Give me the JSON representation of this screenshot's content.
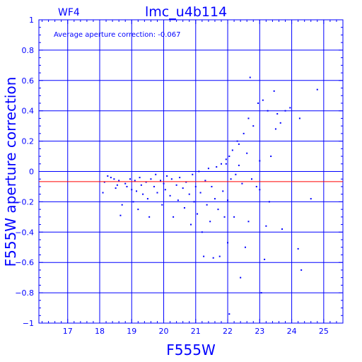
{
  "chart_data": {
    "type": "scatter",
    "panel_label": "WF4",
    "title": "lmc_u4b114",
    "xlabel": "F555W",
    "ylabel": "F555W aperture correction",
    "annotation": "Average aperture correction: -0.067",
    "average_correction": -0.067,
    "xlim": [
      16.1,
      25.6
    ],
    "ylim": [
      -1,
      1
    ],
    "x_ticks": [
      17,
      18,
      19,
      20,
      21,
      22,
      23,
      24,
      25
    ],
    "y_ticks": [
      1,
      0.8,
      0.6,
      0.4,
      0.2,
      0,
      -0.2,
      -0.4,
      -0.6,
      -0.8,
      -1
    ],
    "y_tick_labels": [
      "1",
      "0.8",
      "0.6",
      "0.4",
      "0.2",
      "0",
      "−0.2",
      "−0.4",
      "−0.6",
      "−0.8",
      "−1"
    ],
    "grid": true,
    "colors": {
      "axes": "#0000ff",
      "grid": "#0000ff",
      "points": "#0000ff",
      "average_line": "#ff0000"
    },
    "series": [
      {
        "points": [
          [
            18.1,
            -0.14
          ],
          [
            18.15,
            -0.07
          ],
          [
            18.25,
            -0.03
          ],
          [
            18.35,
            -0.04
          ],
          [
            18.45,
            -0.05
          ],
          [
            18.5,
            -0.11
          ],
          [
            18.55,
            -0.09
          ],
          [
            18.6,
            -0.06
          ],
          [
            18.65,
            -0.29
          ],
          [
            18.7,
            -0.22
          ],
          [
            18.8,
            -0.08
          ],
          [
            18.85,
            -0.1
          ],
          [
            18.95,
            -0.05
          ],
          [
            19.0,
            -0.12
          ],
          [
            19.05,
            -0.2
          ],
          [
            19.1,
            -0.06
          ],
          [
            19.15,
            -0.13
          ],
          [
            19.2,
            -0.25
          ],
          [
            19.25,
            -0.04
          ],
          [
            19.3,
            -0.09
          ],
          [
            19.35,
            -0.15
          ],
          [
            19.45,
            -0.07
          ],
          [
            19.5,
            -0.18
          ],
          [
            19.55,
            -0.3
          ],
          [
            19.6,
            -0.05
          ],
          [
            19.7,
            -0.1
          ],
          [
            19.75,
            -0.02
          ],
          [
            19.8,
            -0.14
          ],
          [
            19.9,
            -0.06
          ],
          [
            19.95,
            -0.22
          ],
          [
            20.0,
            -0.08
          ],
          [
            20.05,
            -0.12
          ],
          [
            20.1,
            -0.03
          ],
          [
            20.2,
            -0.16
          ],
          [
            20.25,
            -0.05
          ],
          [
            20.3,
            -0.3
          ],
          [
            20.4,
            -0.09
          ],
          [
            20.45,
            -0.19
          ],
          [
            20.5,
            -0.04
          ],
          [
            20.6,
            -0.11
          ],
          [
            20.65,
            -0.24
          ],
          [
            20.7,
            -0.07
          ],
          [
            20.8,
            -0.15
          ],
          [
            20.85,
            -0.35
          ],
          [
            20.9,
            -0.02
          ],
          [
            20.95,
            -0.2
          ],
          [
            21.0,
            -0.1
          ],
          [
            21.05,
            -0.28
          ],
          [
            21.1,
            0.0
          ],
          [
            21.15,
            -0.14
          ],
          [
            21.2,
            -0.4
          ],
          [
            21.25,
            -0.56
          ],
          [
            21.3,
            -0.06
          ],
          [
            21.35,
            -0.22
          ],
          [
            21.4,
            0.02
          ],
          [
            21.45,
            -0.33
          ],
          [
            21.5,
            -0.1
          ],
          [
            21.55,
            -0.57
          ],
          [
            21.6,
            -0.18
          ],
          [
            21.65,
            0.03
          ],
          [
            21.7,
            -0.25
          ],
          [
            21.75,
            -0.56
          ],
          [
            21.8,
            0.05
          ],
          [
            21.85,
            -0.13
          ],
          [
            21.9,
            -0.3
          ],
          [
            21.95,
            0.08
          ],
          [
            22.0,
            -0.47
          ],
          [
            22.0,
            -0.19
          ],
          [
            22.05,
            0.1
          ],
          [
            22.1,
            -0.05
          ],
          [
            22.15,
            0.14
          ],
          [
            22.2,
            -0.3
          ],
          [
            22.25,
            -0.02
          ],
          [
            22.3,
            0.2
          ],
          [
            22.35,
            0.04
          ],
          [
            22.4,
            -0.7
          ],
          [
            22.45,
            -0.08
          ],
          [
            22.5,
            0.25
          ],
          [
            22.55,
            -0.5
          ],
          [
            22.6,
            0.12
          ],
          [
            22.65,
            -0.33
          ],
          [
            22.7,
            0.62
          ],
          [
            22.75,
            -0.05
          ],
          [
            22.8,
            0.3
          ],
          [
            22.9,
            -0.1
          ],
          [
            22.95,
            0.45
          ],
          [
            23.0,
            0.07
          ],
          [
            23.05,
            -0.8
          ],
          [
            23.1,
            0.47
          ],
          [
            23.15,
            -0.58
          ],
          [
            23.2,
            -0.36
          ],
          [
            23.25,
            0.4
          ],
          [
            23.3,
            -0.2
          ],
          [
            23.35,
            0.1
          ],
          [
            23.45,
            0.53
          ],
          [
            23.5,
            0.28
          ],
          [
            23.65,
            0.32
          ],
          [
            23.7,
            -0.38
          ],
          [
            23.8,
            0.4
          ],
          [
            23.95,
            0.42
          ],
          [
            24.2,
            -0.51
          ],
          [
            24.25,
            0.35
          ],
          [
            24.3,
            -0.65
          ],
          [
            24.6,
            -0.18
          ],
          [
            24.8,
            0.54
          ],
          [
            22.05,
            -0.94
          ],
          [
            21.95,
            0.05
          ],
          [
            23.55,
            0.38
          ],
          [
            23.0,
            -0.12
          ],
          [
            22.65,
            0.35
          ],
          [
            22.35,
            0.18
          ]
        ]
      }
    ]
  }
}
